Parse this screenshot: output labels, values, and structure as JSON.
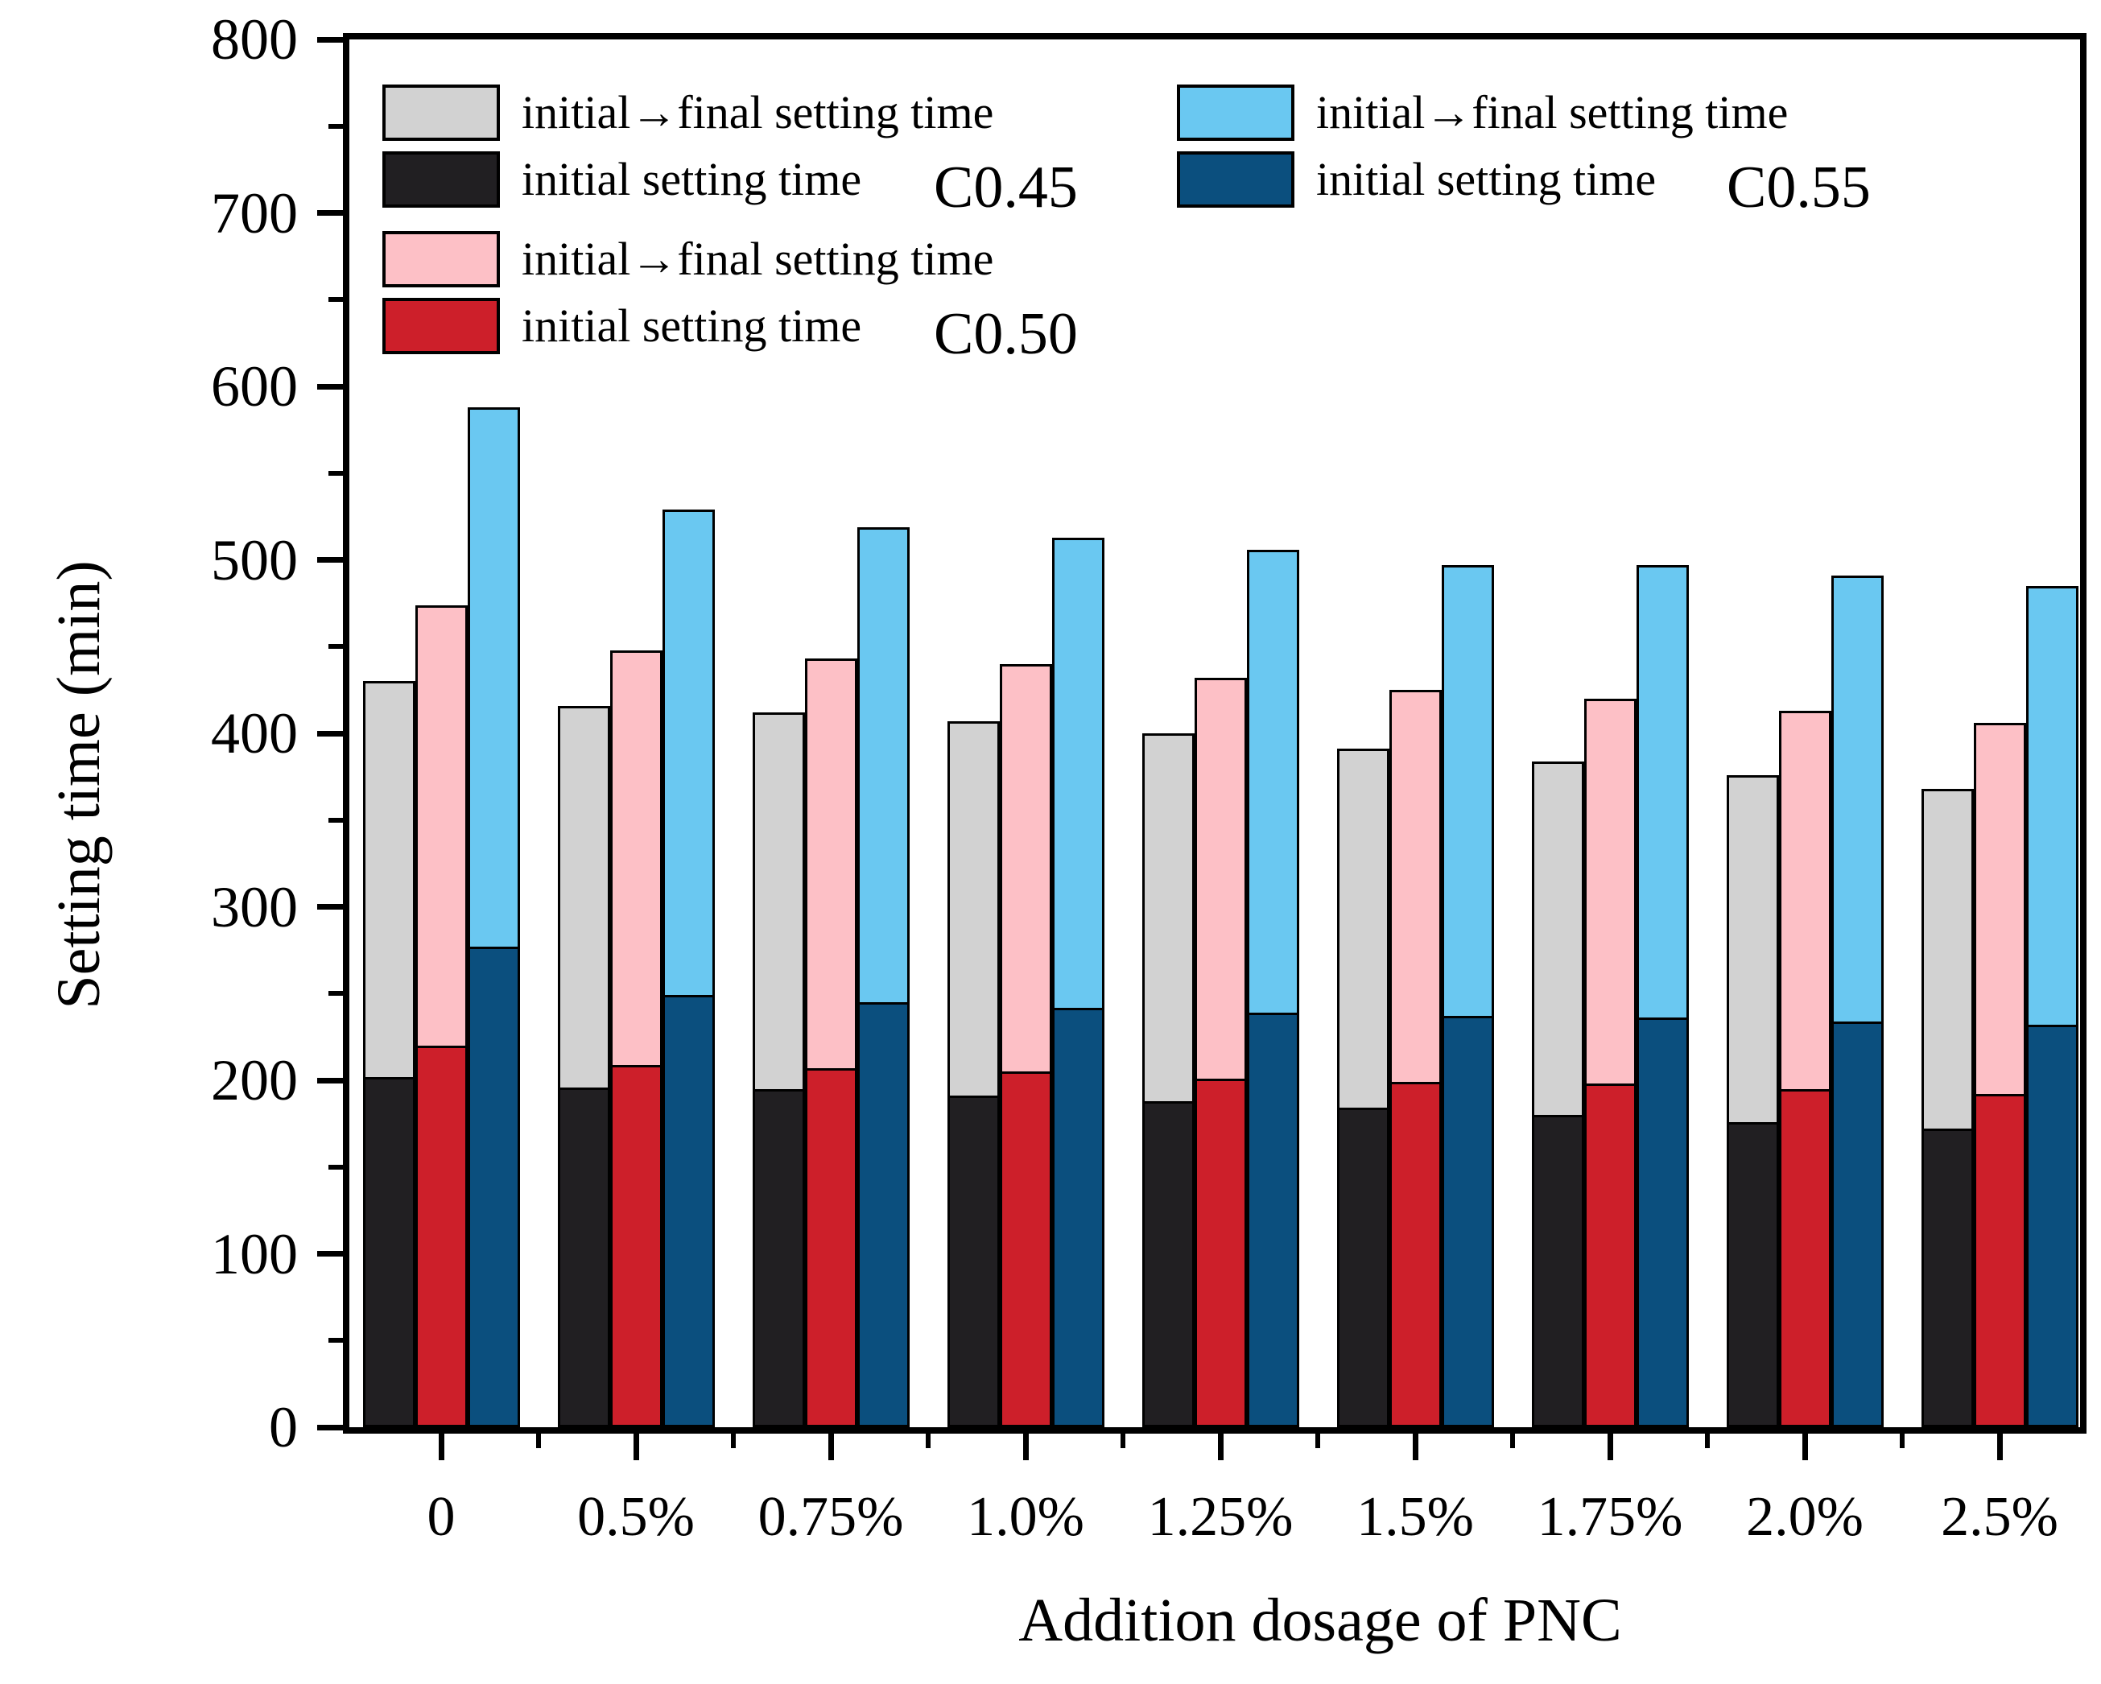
{
  "figure": {
    "xlabel": "Addition dosage of PNC",
    "ylabel": "Setting time (min)"
  },
  "legend": {
    "c045_final": "initial→final setting time",
    "c045_initial": "initial setting time",
    "c045_tag": "C0.45",
    "c050_final": "initial→final setting time",
    "c050_initial": "initial setting time",
    "c050_tag": "C0.50",
    "c055_final": "initial→final setting time",
    "c055_initial": "initial setting time",
    "c055_tag": "C0.55"
  },
  "chart_data": {
    "type": "bar",
    "title": "",
    "xlabel": "Addition dosage of PNC",
    "ylabel": "Setting time (min)",
    "unit": "min",
    "ylim": [
      0,
      800
    ],
    "y_major_tick_step": 100,
    "y_minor_tick_step": 50,
    "grid": false,
    "legend_position": "top-inside",
    "categories": [
      "0",
      "0.5%",
      "0.75%",
      "1.0%",
      "1.25%",
      "1.5%",
      "1.75%",
      "2.0%",
      "2.5%"
    ],
    "series": [
      {
        "name": "C0.45",
        "initial_setting_time": [
          202,
          196,
          195,
          191,
          188,
          184,
          180,
          176,
          172
        ],
        "final_setting_time": [
          430,
          416,
          412,
          407,
          400,
          391,
          384,
          376,
          368
        ],
        "initial_color": "#211f22",
        "final_color": "#d2d2d2"
      },
      {
        "name": "C0.50",
        "initial_setting_time": [
          220,
          209,
          207,
          205,
          201,
          199,
          198,
          195,
          192
        ],
        "final_setting_time": [
          474,
          448,
          443,
          440,
          432,
          425,
          420,
          413,
          406
        ],
        "initial_color": "#cd1f2a",
        "final_color": "#fdc0c6"
      },
      {
        "name": "C0.55",
        "initial_setting_time": [
          277,
          249,
          245,
          242,
          239,
          237,
          236,
          234,
          232
        ],
        "final_setting_time": [
          588,
          529,
          519,
          513,
          506,
          497,
          497,
          491,
          485
        ],
        "initial_color": "#0b4f7e",
        "final_color": "#6ac8f1"
      }
    ]
  }
}
